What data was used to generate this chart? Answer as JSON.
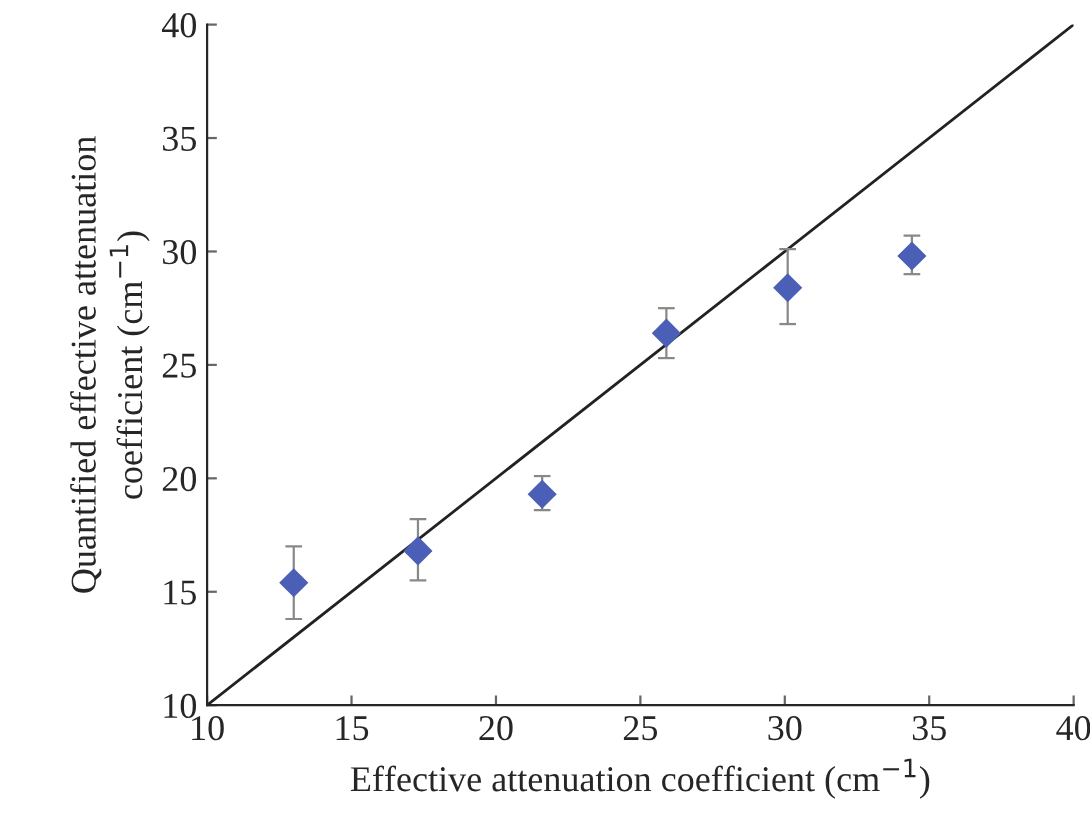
{
  "chart_data": {
    "type": "scatter",
    "xlabel": "Effective attenuation coefficient (cm$^{−1}$)",
    "ylabel": "Quantified effective attenuation\ncoefficient (cm$^{−1}$)",
    "xlim": [
      10,
      40
    ],
    "ylim": [
      10,
      40
    ],
    "xticks": [
      10,
      15,
      20,
      25,
      30,
      35,
      40
    ],
    "yticks": [
      10,
      15,
      20,
      25,
      30,
      35,
      40
    ],
    "grid": false,
    "legend": false,
    "series": [
      {
        "color": "#4a5fb5",
        "marker": "diamond",
        "x": [
          13.0,
          17.3,
          21.6,
          25.9,
          30.1,
          34.4
        ],
        "values": [
          15.4,
          16.8,
          19.3,
          26.4,
          28.4,
          29.8
        ],
        "errors": [
          [
            13.8,
            17.0
          ],
          [
            15.5,
            18.2
          ],
          [
            18.6,
            20.1
          ],
          [
            25.3,
            27.5
          ],
          [
            26.8,
            30.1
          ],
          [
            29.0,
            30.7
          ]
        ]
      },
      {
        "type": "line",
        "color": "#222222",
        "marker": "none",
        "line_style": "solid",
        "x": [
          10,
          40
        ],
        "values": [
          10,
          40
        ]
      }
    ]
  }
}
